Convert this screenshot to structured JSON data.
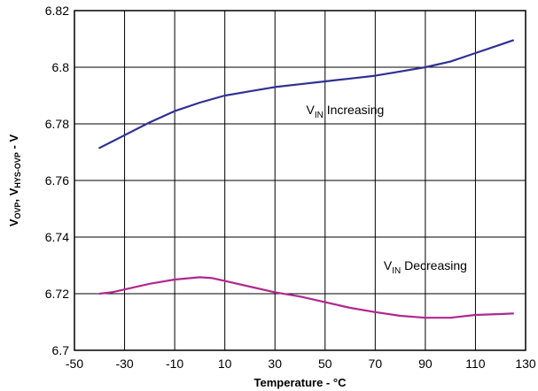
{
  "chart_data": {
    "type": "line",
    "xlabel": "Temperature - °C",
    "ylabel": {
      "main1": "V",
      "sub1": "OVP",
      "main2": ", V",
      "sub2": "HYS-OVP",
      "main3": " - V"
    },
    "xlim": [
      -50,
      130
    ],
    "ylim": [
      6.7,
      6.82
    ],
    "grid": true,
    "xticks": [
      -50,
      -30,
      -10,
      10,
      30,
      50,
      70,
      90,
      110,
      130
    ],
    "yticks": [
      6.7,
      6.72,
      6.74,
      6.76,
      6.78,
      6.8,
      6.82
    ],
    "xtick_labels": [
      "-50",
      "-30",
      "-10",
      "10",
      "30",
      "50",
      "70",
      "90",
      "110",
      "130"
    ],
    "ytick_labels": [
      "6.7",
      "6.72",
      "6.74",
      "6.76",
      "6.78",
      "6.8",
      "6.82"
    ],
    "series": [
      {
        "label_main": "V",
        "label_sub": "IN",
        "label_rest": " Increasing",
        "color": "#2e3192",
        "x": [
          -40,
          -30,
          -20,
          -10,
          0,
          10,
          20,
          30,
          40,
          50,
          60,
          70,
          80,
          90,
          100,
          110,
          120,
          125
        ],
        "y": [
          6.7715,
          6.776,
          6.7805,
          6.7845,
          6.7875,
          6.79,
          6.7915,
          6.793,
          6.794,
          6.795,
          6.796,
          6.797,
          6.7985,
          6.8,
          6.802,
          6.805,
          6.808,
          6.8095
        ]
      },
      {
        "label_main": "V",
        "label_sub": "IN",
        "label_rest": " Decreasing",
        "color": "#b0288f",
        "x": [
          -40,
          -35,
          -30,
          -20,
          -10,
          0,
          5,
          10,
          20,
          30,
          40,
          50,
          60,
          70,
          80,
          90,
          100,
          110,
          120,
          125
        ],
        "y": [
          6.72,
          6.7205,
          6.7215,
          6.7235,
          6.725,
          6.7258,
          6.7255,
          6.7245,
          6.7225,
          6.7205,
          6.719,
          6.717,
          6.715,
          6.7135,
          6.7122,
          6.7115,
          6.7115,
          6.7125,
          6.7128,
          6.713
        ]
      }
    ]
  },
  "colors": {
    "frame": "#000000",
    "grid": "#000000",
    "background": "#ffffff"
  }
}
